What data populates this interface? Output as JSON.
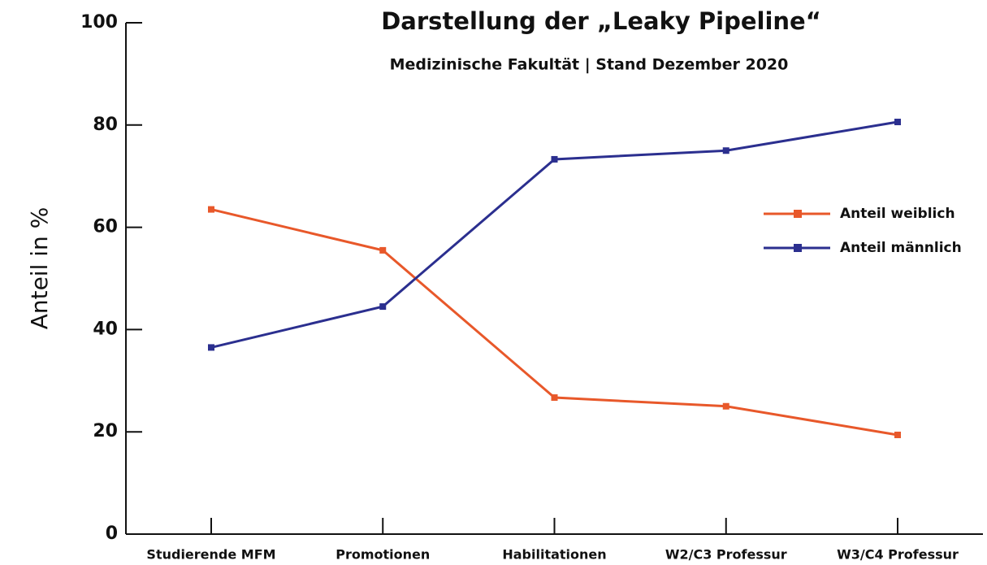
{
  "chart_data": {
    "type": "line",
    "title": "Darstellung der „Leaky Pipeline“",
    "subtitle": "Medizinische Fakultät | Stand Dezember 2020",
    "y_label": "Anteil in %",
    "categories": [
      "Studierende MFM",
      "Promotionen",
      "Habilitationen",
      "W2/C3 Professur",
      "W3/C4 Professur"
    ],
    "series": [
      {
        "name": "Anteil weiblich",
        "color": "#e8582a",
        "values": [
          63.5,
          55.5,
          26.7,
          25.0,
          19.4
        ]
      },
      {
        "name": "Anteil männlich",
        "color": "#2b2f8f",
        "values": [
          36.5,
          44.5,
          73.3,
          75.0,
          80.6
        ]
      }
    ],
    "ylim": [
      0,
      100
    ],
    "yticks": [
      0,
      20,
      40,
      60,
      80,
      100
    ],
    "grid": false,
    "legend": "right"
  }
}
